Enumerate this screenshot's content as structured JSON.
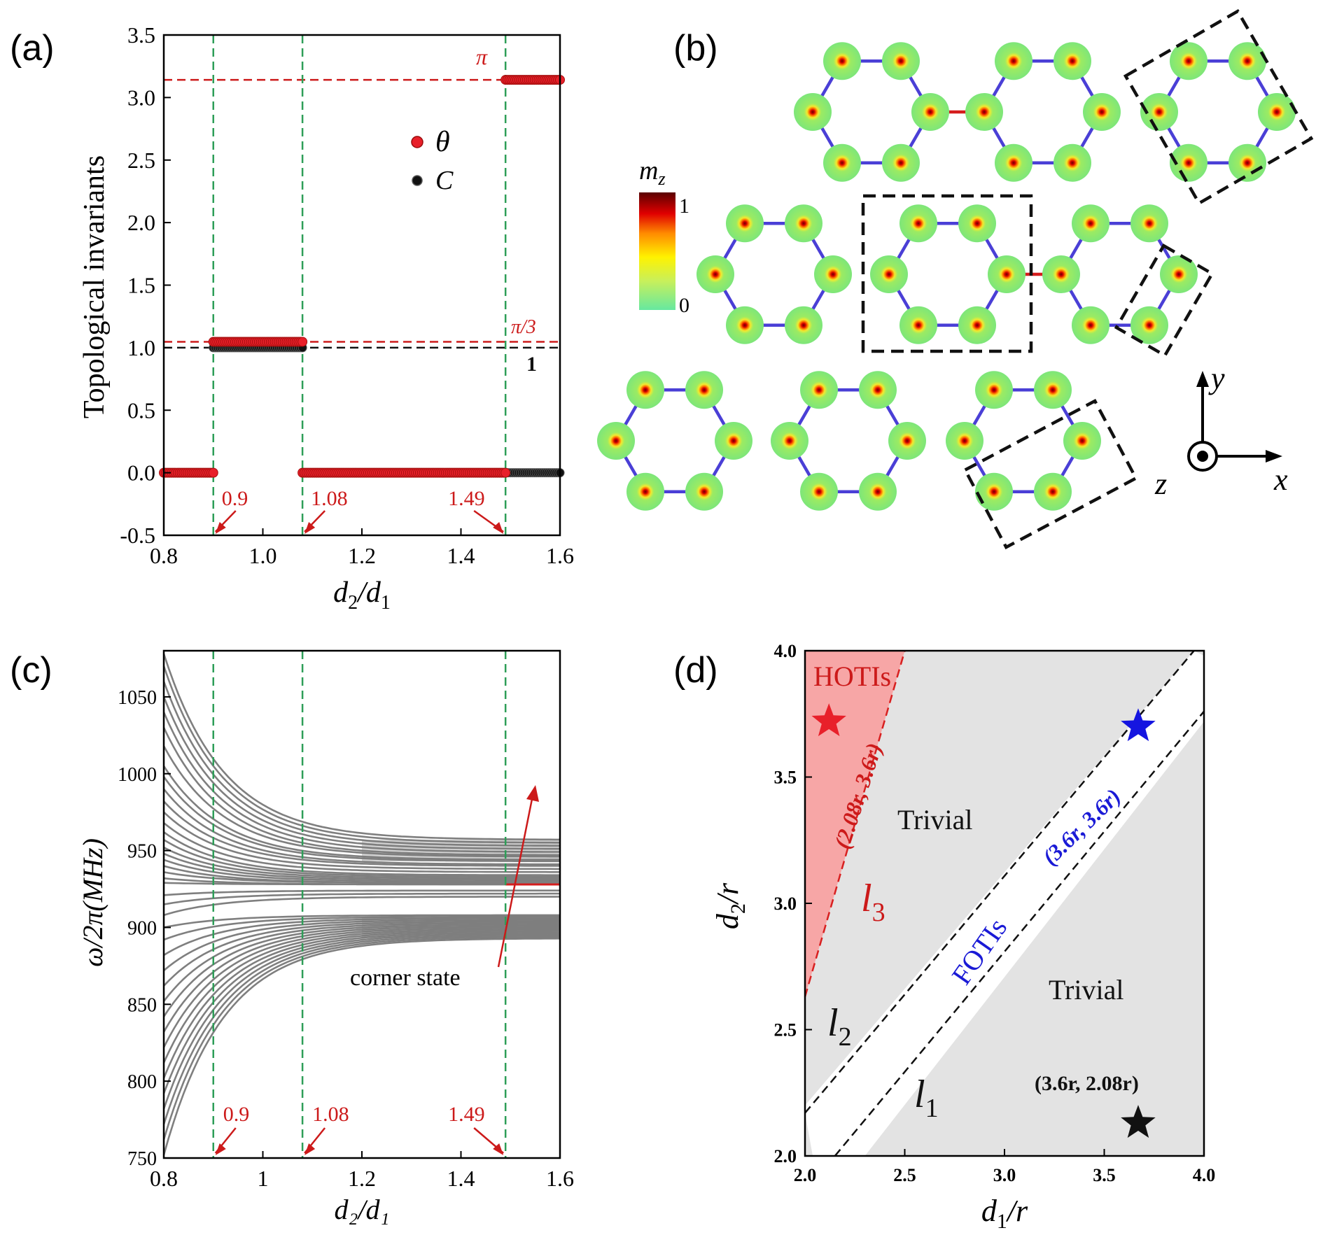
{
  "panel_labels": [
    "(a)",
    "(b)",
    "(c)",
    "(d)"
  ],
  "colors": {
    "theta": "#e8202a",
    "chern": "#111111",
    "transition_line": "#2e9e58",
    "annotation_red": "#cc1a1a",
    "hoti_fill": "#f7a6a6",
    "trivial_fill": "#e3e3e3",
    "fill_white": "#ffffff",
    "bond_blue": "#4a3fd6",
    "bond_red": "#d51d1d",
    "band_gray": "#7f7f7f",
    "star_blue": "#1515e0",
    "text_blue": "#1a1ad6",
    "site_disk": "#7de67a"
  },
  "chart_data": [
    {
      "id": "a",
      "type": "scatter",
      "title": "",
      "xlabel_main": "d",
      "xlabel_sub1": "2",
      "xlabel_slash": "/d",
      "xlabel_sub2": "1",
      "ylabel": "Topological invariants",
      "xlim": [
        0.8,
        1.6
      ],
      "ylim": [
        -0.5,
        3.5
      ],
      "xticks": [
        "0.8",
        "1.0",
        "1.2",
        "1.4",
        "1.6"
      ],
      "xtick_values": [
        0.8,
        1.0,
        1.2,
        1.4,
        1.6
      ],
      "yticks": [
        "-0.5",
        "0.0",
        "0.5",
        "1.0",
        "1.5",
        "2.0",
        "2.5",
        "3.0",
        "3.5"
      ],
      "ytick_values": [
        -0.5,
        0.0,
        0.5,
        1.0,
        1.5,
        2.0,
        2.5,
        3.0,
        3.5
      ],
      "legend": [
        {
          "name": "θ",
          "color": "#e8202a"
        },
        {
          "name": "C",
          "color": "#111111"
        }
      ],
      "series": [
        {
          "name": "θ",
          "segments": [
            {
              "x_start": 0.8,
              "x_end": 0.9,
              "value": 0.0
            },
            {
              "x_start": 0.9,
              "x_end": 1.08,
              "value": 1.047
            },
            {
              "x_start": 1.08,
              "x_end": 1.49,
              "value": 0.0
            },
            {
              "x_start": 1.49,
              "x_end": 1.6,
              "value": 3.1416
            }
          ]
        },
        {
          "name": "C",
          "segments": [
            {
              "x_start": 0.8,
              "x_end": 0.9,
              "value": 0.0
            },
            {
              "x_start": 0.9,
              "x_end": 1.08,
              "value": 1.0
            },
            {
              "x_start": 1.08,
              "x_end": 1.6,
              "value": 0.0
            }
          ]
        }
      ],
      "hlines": [
        {
          "value": 3.1416,
          "label": "π",
          "color": "#cc1a1a"
        },
        {
          "value": 1.047,
          "label": "π/3",
          "color": "#cc1a1a"
        },
        {
          "value": 1.0,
          "label": "1",
          "color": "#111111"
        }
      ],
      "vlines": [
        0.9,
        1.08,
        1.49
      ],
      "annotations": [
        "0.9",
        "1.08",
        "1.49"
      ]
    },
    {
      "id": "c",
      "type": "line",
      "xlabel": "d₂/d₁",
      "ylabel": "ω/2π(MHz)",
      "xlim": [
        0.8,
        1.6
      ],
      "ylim": [
        750,
        1080
      ],
      "xticks": [
        "0.8",
        "1",
        "1.2",
        "1.4",
        "1.6"
      ],
      "xtick_values": [
        0.8,
        1.0,
        1.2,
        1.4,
        1.6
      ],
      "yticks": [
        "750",
        "800",
        "850",
        "900",
        "950",
        "1000",
        "1050"
      ],
      "ytick_values": [
        750,
        800,
        850,
        900,
        950,
        1000,
        1050
      ],
      "upper_bands": {
        "start_values": [
          1078,
          1070,
          1060,
          1050,
          1040,
          1030,
          1018,
          1005,
          998,
          990,
          982,
          975,
          968,
          962,
          957,
          952,
          948,
          944,
          940,
          936,
          932,
          929
        ],
        "end_values": [
          957,
          955,
          953,
          951,
          949,
          947,
          946,
          944,
          943,
          941,
          940,
          938,
          936,
          934,
          933,
          932,
          931,
          930,
          929,
          929,
          928,
          928
        ]
      },
      "lower_bands": {
        "start_values": [
          752,
          762,
          772,
          782,
          792,
          802,
          812,
          822,
          832,
          842,
          852,
          862,
          872,
          882,
          892,
          900,
          908,
          915,
          921
        ],
        "end_values": [
          893,
          894,
          895,
          896,
          897,
          898,
          899,
          900,
          901,
          902,
          903,
          904,
          905,
          906,
          907,
          908,
          920,
          922,
          924
        ]
      },
      "corner_state": {
        "value": 928,
        "x_start": 1.49,
        "x_end": 1.6,
        "label": "corner state"
      },
      "vlines": [
        0.9,
        1.08,
        1.49
      ],
      "annotations": [
        "0.9",
        "1.08",
        "1.49"
      ]
    },
    {
      "id": "d",
      "type": "area",
      "xlabel_main": "d",
      "xlabel_sub": "1",
      "xlabel_rest": "/r",
      "ylabel_main": "d",
      "ylabel_sub": "2",
      "ylabel_rest": "/r",
      "xlim": [
        2.0,
        4.0
      ],
      "ylim": [
        2.0,
        4.0
      ],
      "xticks": [
        "2.0",
        "2.5",
        "3.0",
        "3.5",
        "4.0"
      ],
      "xtick_values": [
        2.0,
        2.5,
        3.0,
        3.5,
        4.0
      ],
      "yticks": [
        "2.0",
        "2.5",
        "3.0",
        "3.5",
        "4.0"
      ],
      "ytick_values": [
        2.0,
        2.5,
        3.0,
        3.5,
        4.0
      ],
      "regions": [
        {
          "name": "HOTIs",
          "color": "#cc1a1a"
        },
        {
          "name": "Trivial",
          "color": "#111111"
        },
        {
          "name": "FOTIs",
          "color": "#1a1ad6"
        },
        {
          "name": "Trivial",
          "color": "#111111"
        }
      ],
      "lines": [
        {
          "name": "l",
          "sub": "3",
          "points": [
            [
              2.0,
              2.63
            ],
            [
              2.5,
              4.0
            ]
          ]
        },
        {
          "name": "l",
          "sub": "2",
          "points": [
            [
              2.0,
              2.17
            ],
            [
              3.95,
              4.0
            ]
          ]
        },
        {
          "name": "l",
          "sub": "1",
          "points": [
            [
              2.15,
              2.0
            ],
            [
              4.0,
              3.76
            ]
          ]
        }
      ],
      "points": [
        {
          "label": "(2.08r, 3.6r)",
          "x": 2.12,
          "y": 3.72,
          "color": "#e8202a"
        },
        {
          "label": "(3.6r, 3.6r)",
          "x": 3.67,
          "y": 3.7,
          "color": "#1515e0"
        },
        {
          "label": "(3.6r, 2.08r)",
          "x": 3.67,
          "y": 2.13,
          "color": "#111111"
        }
      ]
    }
  ],
  "panel_b": {
    "colorbar_label": "m",
    "colorbar_sub": "z",
    "colorbar_max": "1",
    "colorbar_min": "0",
    "axes_labels": {
      "y": "y",
      "x": "x",
      "z": "z"
    }
  }
}
